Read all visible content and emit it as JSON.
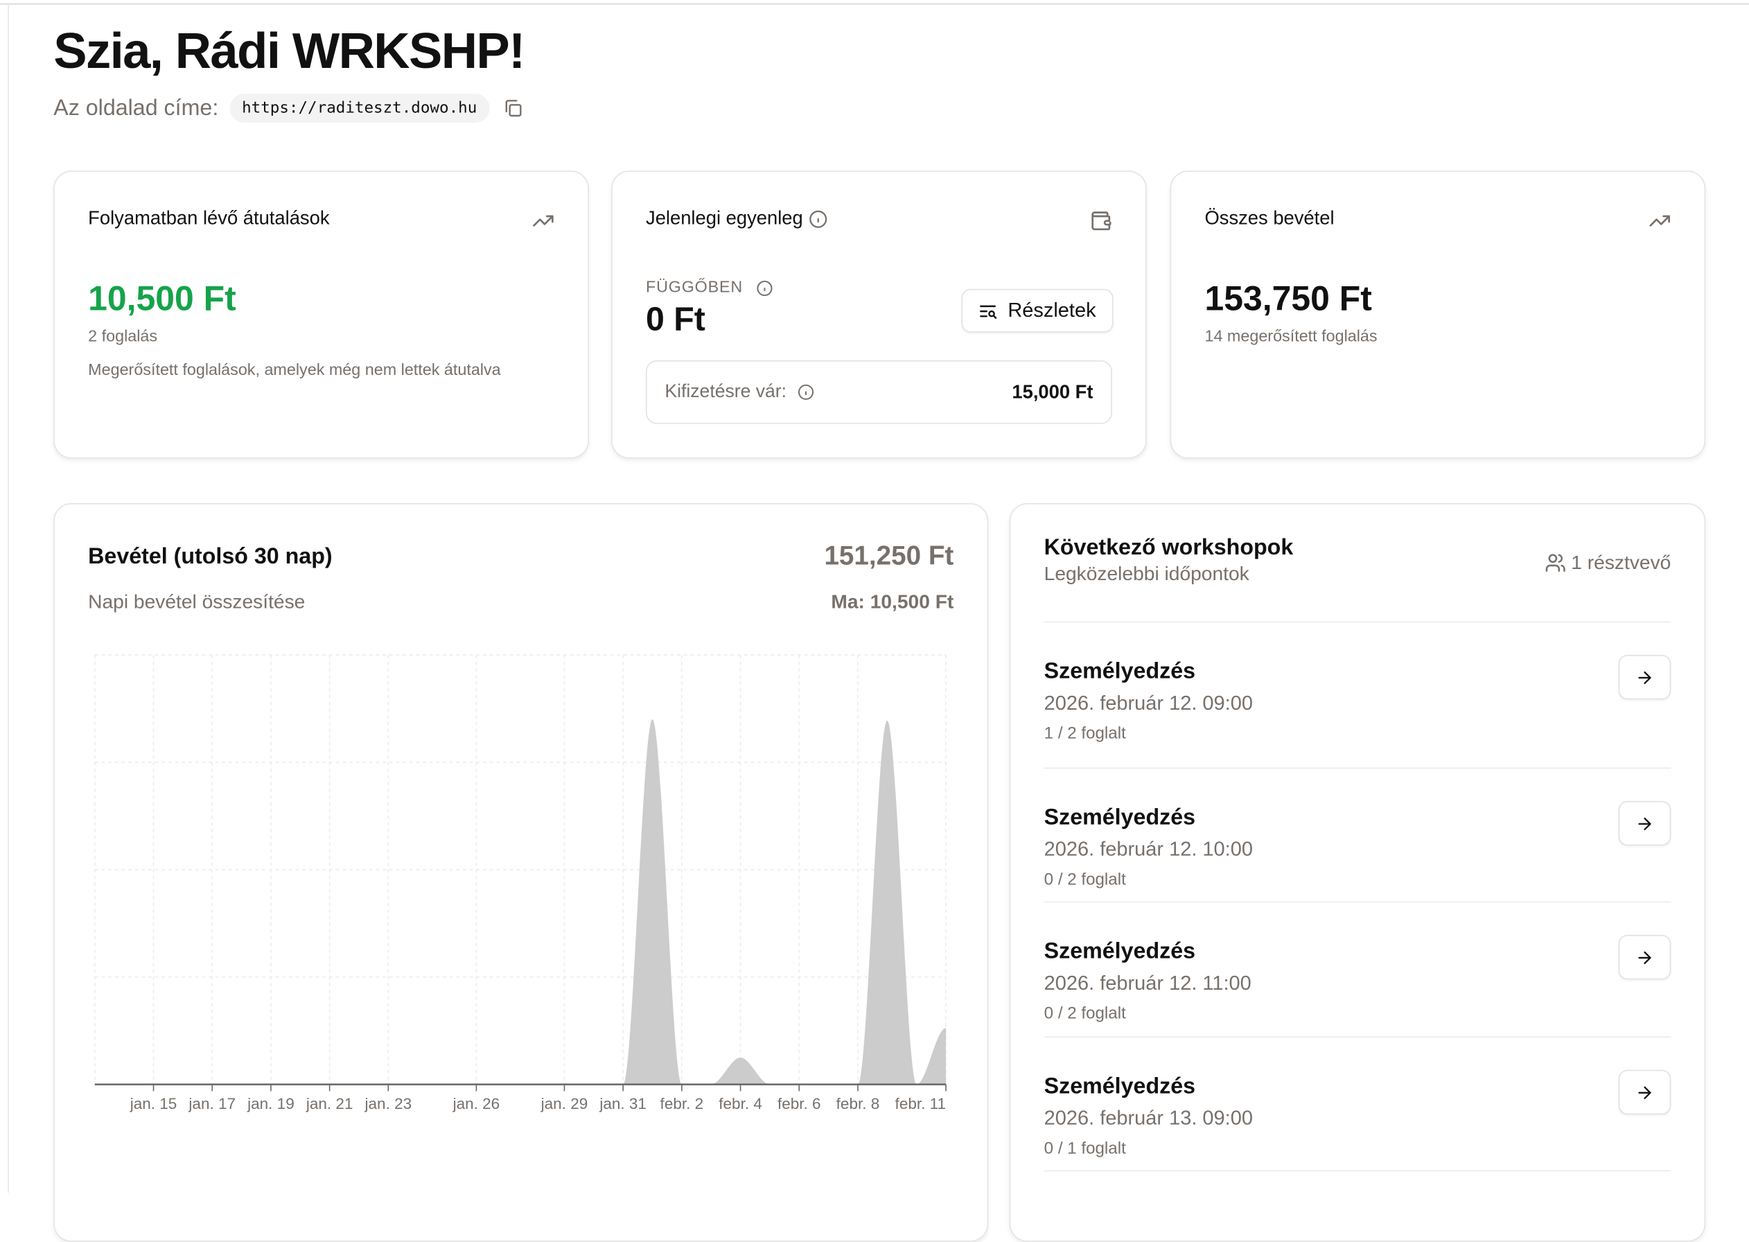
{
  "header": {
    "greeting": "Szia, Rádi WRKSHP!",
    "site_label": "Az oldalad címe:",
    "site_url": "https://raditeszt.dowo.hu",
    "copy_icon": "copy-icon"
  },
  "cards": {
    "pending_transfers": {
      "title": "Folyamatban lévő átutalások",
      "icon": "trending-up-icon",
      "amount": "10,500 Ft",
      "amount_color": "#16a34a",
      "count": "2 foglalás",
      "description": "Megerősített foglalások, amelyek még nem lettek átutalva"
    },
    "balance": {
      "title": "Jelenlegi egyenleg",
      "icon": "wallet-icon",
      "pending_label": "FÜGGŐBEN",
      "pending_amount": "0 Ft",
      "details_button": "Részletek",
      "awaiting_label": "Kifizetésre vár:",
      "awaiting_amount": "15,000 Ft"
    },
    "total_revenue": {
      "title": "Összes bevétel",
      "icon": "trending-up-icon",
      "amount": "153,750 Ft",
      "count": "14 megerősített foglalás"
    }
  },
  "revenue_chart": {
    "title": "Bevétel (utolsó 30 nap)",
    "subtitle": "Napi bevétel összesítése",
    "total": "151,250 Ft",
    "today": "Ma: 10,500 Ft"
  },
  "chart_data": {
    "type": "area",
    "x": [
      "2026-01-13",
      "2026-01-14",
      "2026-01-15",
      "2026-01-16",
      "2026-01-17",
      "2026-01-18",
      "2026-01-19",
      "2026-01-20",
      "2026-01-21",
      "2026-01-22",
      "2026-01-23",
      "2026-01-24",
      "2026-01-25",
      "2026-01-26",
      "2026-01-27",
      "2026-01-28",
      "2026-01-29",
      "2026-01-30",
      "2026-01-31",
      "2026-02-01",
      "2026-02-02",
      "2026-02-03",
      "2026-02-04",
      "2026-02-05",
      "2026-02-06",
      "2026-02-07",
      "2026-02-08",
      "2026-02-09",
      "2026-02-10",
      "2026-02-11"
    ],
    "values": [
      0,
      0,
      0,
      0,
      0,
      0,
      0,
      0,
      0,
      0,
      0,
      0,
      0,
      0,
      0,
      0,
      0,
      0,
      0,
      68000,
      0,
      0,
      5000,
      0,
      0,
      0,
      0,
      67750,
      0,
      10500
    ],
    "xticks": [
      {
        "date": "2026-01-15",
        "label": "jan. 15"
      },
      {
        "date": "2026-01-17",
        "label": "jan. 17"
      },
      {
        "date": "2026-01-19",
        "label": "jan. 19"
      },
      {
        "date": "2026-01-21",
        "label": "jan. 21"
      },
      {
        "date": "2026-01-23",
        "label": "jan. 23"
      },
      {
        "date": "2026-01-26",
        "label": "jan. 26"
      },
      {
        "date": "2026-01-29",
        "label": "jan. 29"
      },
      {
        "date": "2026-01-31",
        "label": "jan. 31"
      },
      {
        "date": "2026-02-02",
        "label": "febr. 2"
      },
      {
        "date": "2026-02-04",
        "label": "febr. 4"
      },
      {
        "date": "2026-02-06",
        "label": "febr. 6"
      },
      {
        "date": "2026-02-08",
        "label": "febr. 8"
      },
      {
        "date": "2026-02-11",
        "label": "febr. 11"
      }
    ],
    "ylim": [
      0,
      80000
    ],
    "grid": true,
    "fill_color": "#cccccc",
    "title": "",
    "xlabel": "",
    "ylabel": ""
  },
  "workshops": {
    "title": "Következő workshopok",
    "subtitle": "Legközelebbi időpontok",
    "participants": "1 résztvevő",
    "participants_icon": "users-icon",
    "items": [
      {
        "name": "Személyedzés",
        "date": "2026. február 12. 09:00",
        "booked": "1 / 2 foglalt"
      },
      {
        "name": "Személyedzés",
        "date": "2026. február 12. 10:00",
        "booked": "0 / 2 foglalt"
      },
      {
        "name": "Személyedzés",
        "date": "2026. február 12. 11:00",
        "booked": "0 / 2 foglalt"
      },
      {
        "name": "Személyedzés",
        "date": "2026. február 13. 09:00",
        "booked": "0 / 1 foglalt"
      }
    ]
  }
}
